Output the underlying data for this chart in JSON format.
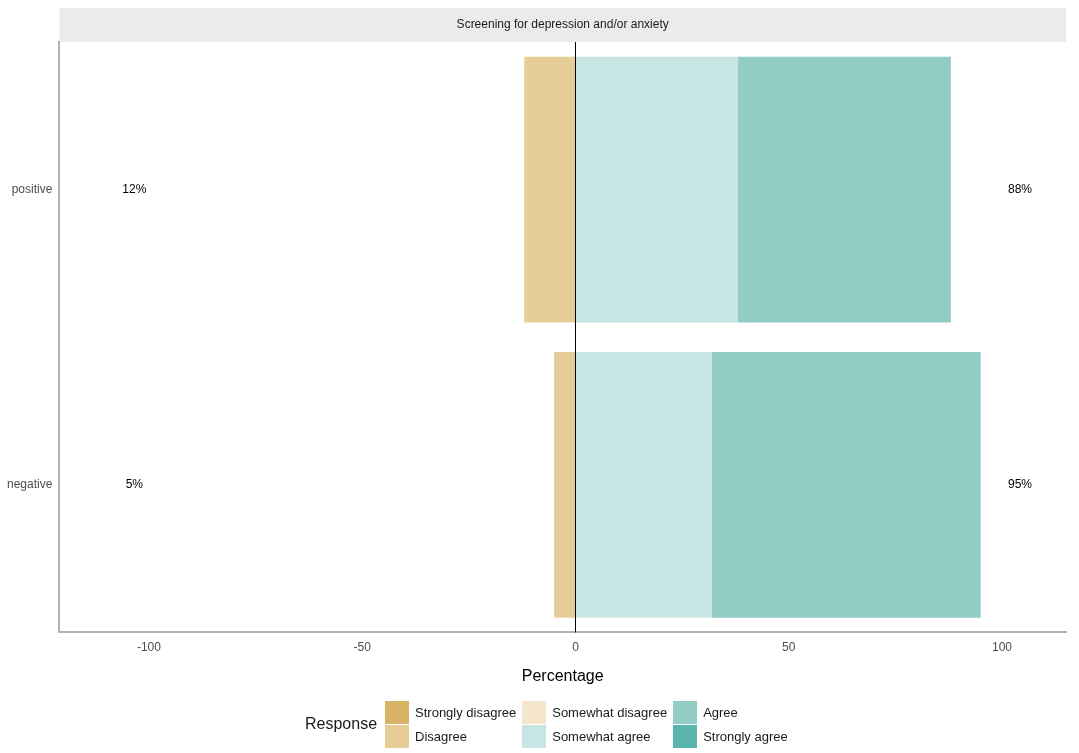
{
  "chart_data": {
    "type": "bar",
    "orientation": "horizontal",
    "stacked": true,
    "title": "Screening for depression and/or anxiety",
    "xlabel": "Percentage",
    "legend_title": "Response",
    "legend": "bottom",
    "grid": false,
    "categories": [
      "positive",
      "negative"
    ],
    "series": [
      {
        "name": "Strongly disagree",
        "color": "#d8b365",
        "values": [
          0,
          0
        ]
      },
      {
        "name": "Disagree",
        "color": "#e6cd97",
        "values": [
          -12,
          -5
        ]
      },
      {
        "name": "Somewhat disagree",
        "color": "#f5e6c9",
        "values": [
          0,
          0
        ]
      },
      {
        "name": "Somewhat agree",
        "color": "#c7e6e3",
        "values": [
          38,
          32
        ]
      },
      {
        "name": "Agree",
        "color": "#91cdc4",
        "values": [
          50,
          63
        ]
      },
      {
        "name": "Strongly agree",
        "color": "#5ab4ac",
        "values": [
          0,
          0
        ]
      }
    ],
    "xlim": [
      -121,
      115
    ],
    "xticks": [
      -100,
      -50,
      0,
      50,
      100
    ],
    "ref_lines": [
      {
        "axis": "x",
        "value": 0,
        "color": "#000000"
      }
    ],
    "annotations": [
      "12%",
      "88%",
      "5%",
      "95%"
    ]
  }
}
